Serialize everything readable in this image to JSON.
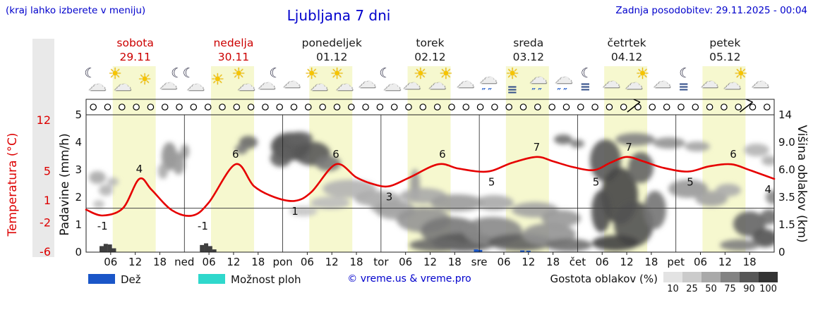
{
  "header": {
    "hint": "(kraj lahko izberete v meniju)",
    "title": "Ljubljana 7 dni",
    "updated": "Zadnja posodobitev: 29.11.2025 - 00:04"
  },
  "axes": {
    "temp_label": "Temperatura (°C)",
    "precip_label": "Padavine (mm/h)",
    "cloud_label": "Višina oblakov (km)"
  },
  "legend": {
    "rain": "Dež",
    "showers": "Možnost ploh",
    "copyright": "© vreme.us & vreme.pro",
    "cloud_density": "Gostota oblakov (%)",
    "cloud_scale": [
      "10",
      "25",
      "50",
      "75",
      "90",
      "100"
    ],
    "scale_colors": [
      "#e3e3e3",
      "#cbcbcb",
      "#a9a9a9",
      "#828282",
      "#575757",
      "#333333"
    ],
    "rain_color": "#1a56c8",
    "showers_color": "#2fd8cc"
  },
  "chart_data": {
    "type": "meteogram",
    "title": "Ljubljana 7 dni",
    "days": [
      {
        "name": "sobota",
        "date": "29.11",
        "color": "#cc0000"
      },
      {
        "name": "nedelja",
        "date": "30.11",
        "color": "#cc0000"
      },
      {
        "name": "ponedeljek",
        "date": "01.12",
        "color": "#1a1a1a"
      },
      {
        "name": "torek",
        "date": "02.12",
        "color": "#1a1a1a"
      },
      {
        "name": "sreda",
        "date": "03.12",
        "color": "#1a1a1a"
      },
      {
        "name": "četrtek",
        "date": "04.12",
        "color": "#1a1a1a"
      },
      {
        "name": "petek",
        "date": "05.12",
        "color": "#1a1a1a"
      }
    ],
    "day_short": [
      "ned",
      "pon",
      "tor",
      "sre",
      "čet",
      "pet"
    ],
    "hour_ticks": [
      "06",
      "12",
      "18"
    ],
    "temp_axis": {
      "ticks": [
        12,
        5,
        1,
        -2,
        -6
      ],
      "color": "#dd0000"
    },
    "precip_axis": {
      "ticks": [
        5,
        4,
        3,
        2,
        1,
        0
      ]
    },
    "cloud_axis": {
      "ticks": [
        "14",
        "9.0",
        "6.0",
        "3.5",
        "1.5",
        "0"
      ]
    },
    "day_band": {
      "start_hour": 6.5,
      "end_hour": 17,
      "color": "#f6f8cf"
    },
    "temperature": {
      "color": "#e60000",
      "series": [
        [
          0,
          -0.2
        ],
        [
          4,
          -1
        ],
        [
          9,
          0
        ],
        [
          13,
          4
        ],
        [
          16,
          2.5
        ],
        [
          21,
          -0.3
        ],
        [
          26,
          -1
        ],
        [
          30,
          0.8
        ],
        [
          36.5,
          6
        ],
        [
          41,
          3
        ],
        [
          46,
          1.5
        ],
        [
          51,
          1
        ],
        [
          55,
          2.2
        ],
        [
          61,
          6
        ],
        [
          66,
          4.2
        ],
        [
          70,
          3.3
        ],
        [
          74,
          3
        ],
        [
          79,
          4.2
        ],
        [
          86,
          6
        ],
        [
          91,
          5.4
        ],
        [
          98,
          5
        ],
        [
          104,
          6.2
        ],
        [
          110,
          7
        ],
        [
          114,
          6.4
        ],
        [
          119,
          5.6
        ],
        [
          124,
          5.2
        ],
        [
          128,
          6.2
        ],
        [
          132,
          7
        ],
        [
          136,
          6.4
        ],
        [
          141,
          5.5
        ],
        [
          147,
          5
        ],
        [
          152,
          5.7
        ],
        [
          157.5,
          6
        ],
        [
          162,
          5.2
        ],
        [
          168,
          4
        ]
      ],
      "labels": [
        {
          "h": 4,
          "v": -1,
          "pos": "below"
        },
        {
          "h": 13,
          "v": 4,
          "pos": "above"
        },
        {
          "h": 28.5,
          "v": -1,
          "pos": "below"
        },
        {
          "h": 36.5,
          "v": 6,
          "pos": "above"
        },
        {
          "h": 51,
          "v": 1,
          "pos": "below"
        },
        {
          "h": 61,
          "v": 6,
          "pos": "above"
        },
        {
          "h": 74,
          "v": 3,
          "pos": "below"
        },
        {
          "h": 87,
          "v": 6,
          "pos": "above"
        },
        {
          "h": 99,
          "v": 5,
          "pos": "below"
        },
        {
          "h": 110,
          "v": 7,
          "pos": "above"
        },
        {
          "h": 124.5,
          "v": 5,
          "pos": "below"
        },
        {
          "h": 132.5,
          "v": 7,
          "pos": "above"
        },
        {
          "h": 147.5,
          "v": 5,
          "pos": "below"
        },
        {
          "h": 158,
          "v": 6,
          "pos": "above"
        },
        {
          "h": 166.5,
          "v": 4,
          "pos": "below"
        }
      ]
    },
    "precip_bars": [
      {
        "h": 3.8,
        "mm": 0.22
      },
      {
        "h": 4.8,
        "mm": 0.3
      },
      {
        "h": 5.8,
        "mm": 0.28
      },
      {
        "h": 6.8,
        "mm": 0.14
      },
      {
        "h": 28.3,
        "mm": 0.26
      },
      {
        "h": 29.3,
        "mm": 0.32
      },
      {
        "h": 30.3,
        "mm": 0.22
      },
      {
        "h": 31.3,
        "mm": 0.1
      }
    ],
    "rain_bars": [
      {
        "h": 95.2,
        "mm": 0.1
      },
      {
        "h": 96.2,
        "mm": 0.08
      },
      {
        "h": 106.5,
        "mm": 0.06
      },
      {
        "h": 108,
        "mm": 0.05
      }
    ],
    "clouds": [
      [
        138,
        252,
        12,
        9,
        "#a8a8a8"
      ],
      [
        150,
        270,
        10,
        8,
        "#b4b4b4"
      ],
      [
        140,
        290,
        8,
        6,
        "#c0c0c0"
      ],
      [
        160,
        258,
        8,
        6,
        "#b8b8b8"
      ],
      [
        240,
        222,
        11,
        20,
        "#909090"
      ],
      [
        253,
        232,
        9,
        16,
        "#9a9a9a"
      ],
      [
        231,
        243,
        7,
        11,
        "#a8a8a8"
      ],
      [
        262,
        215,
        6,
        10,
        "#989898"
      ],
      [
        352,
        202,
        13,
        9,
        "#6a6a6a"
      ],
      [
        342,
        212,
        9,
        7,
        "#7a7a7a"
      ],
      [
        412,
        208,
        28,
        20,
        "#4a4a4a"
      ],
      [
        442,
        218,
        26,
        17,
        "#565656"
      ],
      [
        425,
        196,
        18,
        9,
        "#646464"
      ],
      [
        465,
        232,
        18,
        11,
        "#787878"
      ],
      [
        398,
        225,
        15,
        12,
        "#606060"
      ],
      [
        495,
        268,
        38,
        13,
        "#b2b2b2"
      ],
      [
        535,
        282,
        33,
        11,
        "#aaaaaa"
      ],
      [
        468,
        288,
        28,
        9,
        "#bcbcbc"
      ],
      [
        550,
        295,
        25,
        9,
        "#b0b0b0"
      ],
      [
        430,
        300,
        20,
        7,
        "#c4c4c4"
      ],
      [
        560,
        298,
        28,
        14,
        "#a4a4a4"
      ],
      [
        588,
        262,
        7,
        22,
        "#9a9a9a"
      ],
      [
        600,
        312,
        38,
        18,
        "#949494"
      ],
      [
        638,
        328,
        42,
        20,
        "#787878"
      ],
      [
        658,
        344,
        46,
        13,
        "#5a5a5a"
      ],
      [
        618,
        348,
        38,
        9,
        "#686868"
      ],
      [
        600,
        278,
        33,
        11,
        "#a8a8a8"
      ],
      [
        648,
        288,
        38,
        12,
        "#9a9a9a"
      ],
      [
        698,
        328,
        42,
        20,
        "#888888"
      ],
      [
        738,
        344,
        46,
        12,
        "#5e5e5e"
      ],
      [
        778,
        333,
        38,
        16,
        "#929292"
      ],
      [
        806,
        348,
        33,
        9,
        "#6e6e6e"
      ],
      [
        700,
        288,
        28,
        11,
        "#a8a8a8"
      ],
      [
        758,
        298,
        33,
        11,
        "#a2a2a2"
      ],
      [
        795,
        310,
        28,
        12,
        "#989898"
      ],
      [
        798,
        198,
        13,
        7,
        "#6e6e6e"
      ],
      [
        818,
        204,
        10,
        6,
        "#7e7e7e"
      ],
      [
        858,
        228,
        22,
        30,
        "#565656"
      ],
      [
        878,
        278,
        26,
        40,
        "#464646"
      ],
      [
        898,
        318,
        28,
        32,
        "#525252"
      ],
      [
        872,
        345,
        33,
        11,
        "#404040"
      ],
      [
        908,
        238,
        18,
        22,
        "#646464"
      ],
      [
        928,
        298,
        16,
        27,
        "#747474"
      ],
      [
        852,
        300,
        14,
        30,
        "#4e4e4e"
      ],
      [
        900,
        198,
        28,
        9,
        "#828282"
      ],
      [
        948,
        203,
        23,
        8,
        "#929292"
      ],
      [
        988,
        208,
        18,
        7,
        "#a2a2a2"
      ],
      [
        975,
        268,
        28,
        13,
        "#989898"
      ],
      [
        1008,
        282,
        23,
        11,
        "#a2a2a2"
      ],
      [
        1032,
        270,
        18,
        9,
        "#acacac"
      ],
      [
        1062,
        318,
        23,
        18,
        "#646464"
      ],
      [
        1084,
        338,
        18,
        13,
        "#525252"
      ],
      [
        1090,
        308,
        13,
        11,
        "#6e6e6e"
      ],
      [
        1048,
        348,
        28,
        8,
        "#7e7e7e"
      ],
      [
        1095,
        280,
        10,
        10,
        "#8a8a8a"
      ],
      [
        1072,
        213,
        18,
        9,
        "#b4b4b4"
      ],
      [
        1090,
        228,
        11,
        7,
        "#aeaeae"
      ]
    ],
    "wind": {
      "count": 48,
      "barb_hours": [
        133,
        160.5
      ]
    },
    "icons": {
      "slot_hours": [
        2.3,
        8.3,
        14.5,
        20.7
      ],
      "glyphs": {
        "sun": "☀",
        "moon": "☾",
        "cloud": "☁",
        "rain": "″″",
        "fog": "≡"
      },
      "types": [
        "moon-cloud",
        "sun-cloud",
        "sun",
        "cloud-moon",
        "moon-cloud",
        "sun",
        "sun-cloud",
        "cloud-moon",
        "cloud",
        "sun-cloud",
        "sun-cloud",
        "cloud",
        "moon-cloud",
        "cloud-sun",
        "cloud-sun",
        "cloud",
        "cloud-rain",
        "sun-rain-lines",
        "cloud-rain",
        "cloud-rain",
        "moon-fog",
        "cloud",
        "cloud-sun",
        "cloud",
        "moon-fog",
        "cloud",
        "cloud-sun",
        "cloud"
      ]
    }
  }
}
